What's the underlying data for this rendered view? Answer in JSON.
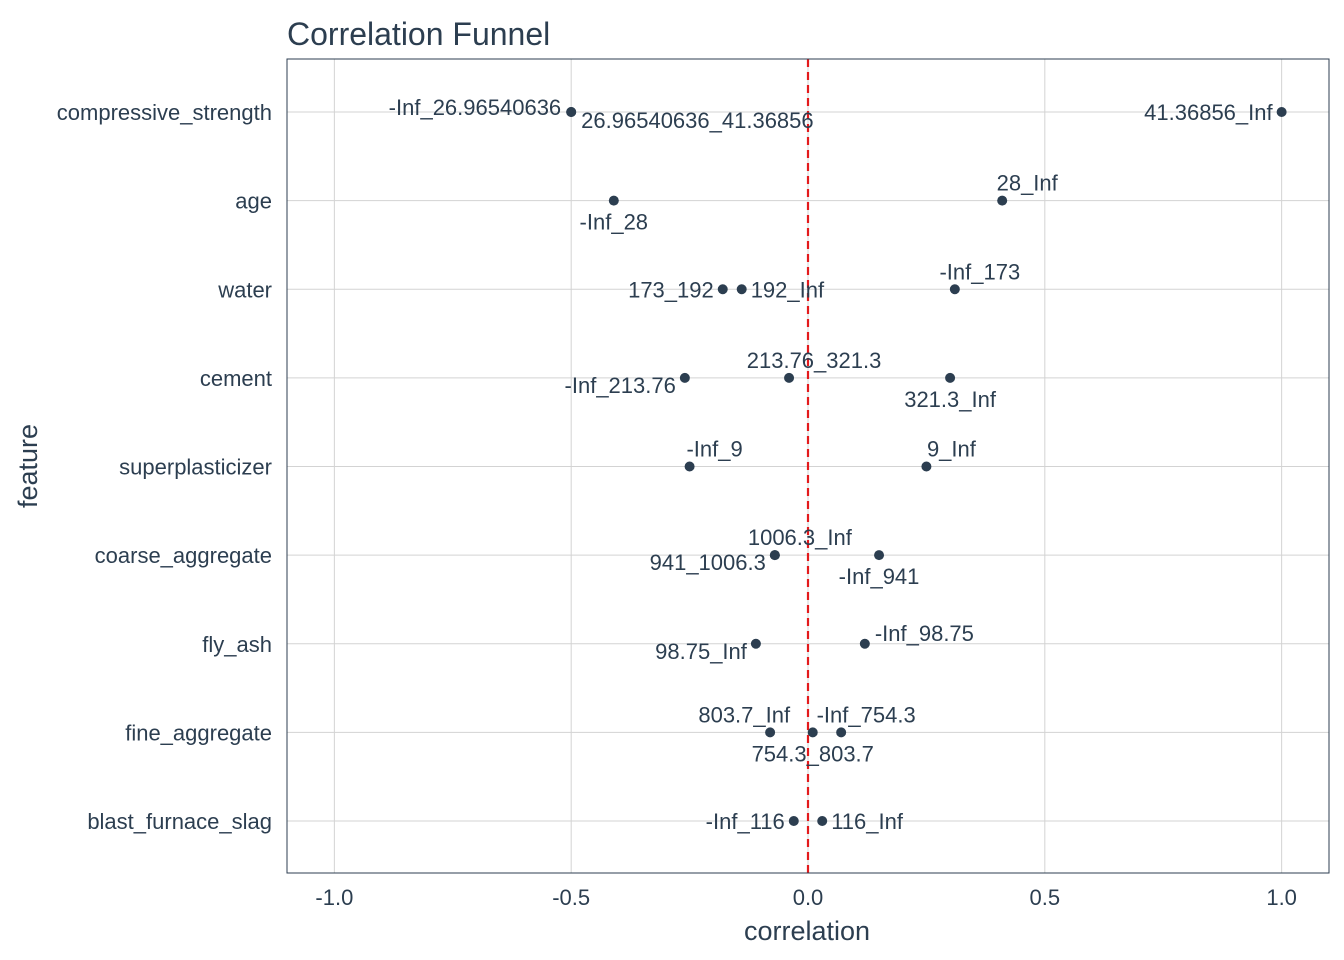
{
  "chart_data": {
    "type": "scatter",
    "title": "Correlation Funnel",
    "xlabel": "correlation",
    "ylabel": "feature",
    "xlim": [
      -1.1,
      1.1
    ],
    "x_ticks": [
      -1.0,
      -0.5,
      0.0,
      0.5,
      1.0
    ],
    "x_tick_labels": [
      "-1.0",
      "-0.5",
      "0.0",
      "0.5",
      "1.0"
    ],
    "grid": true,
    "legend": "none",
    "point_color": "#2c3e50",
    "reference_line": {
      "x": 0,
      "color": "#e31a1c",
      "style": "dashed"
    },
    "categories": [
      "compressive_strength",
      "age",
      "water",
      "cement",
      "superplasticizer",
      "coarse_aggregate",
      "fly_ash",
      "fine_aggregate",
      "blast_furnace_slag"
    ],
    "points": [
      {
        "feature": "compressive_strength",
        "bin": "-Inf_26.96540636",
        "correlation": -0.5,
        "label_pos": "upper-left"
      },
      {
        "feature": "compressive_strength",
        "bin": "26.96540636_41.36856",
        "correlation": -0.5,
        "label_pos": "lower-right"
      },
      {
        "feature": "compressive_strength",
        "bin": "41.36856_Inf",
        "correlation": 1.0,
        "label_pos": "left"
      },
      {
        "feature": "age",
        "bin": "-Inf_28",
        "correlation": -0.41,
        "label_pos": "below"
      },
      {
        "feature": "age",
        "bin": "28_Inf",
        "correlation": 0.41,
        "label_pos": "above"
      },
      {
        "feature": "water",
        "bin": "173_192",
        "correlation": -0.18,
        "label_pos": "left"
      },
      {
        "feature": "water",
        "bin": "192_Inf",
        "correlation": -0.14,
        "label_pos": "right"
      },
      {
        "feature": "water",
        "bin": "-Inf_173",
        "correlation": 0.31,
        "label_pos": "above"
      },
      {
        "feature": "cement",
        "bin": "-Inf_213.76",
        "correlation": -0.26,
        "label_pos": "below-left"
      },
      {
        "feature": "cement",
        "bin": "213.76_321.3",
        "correlation": -0.04,
        "label_pos": "above"
      },
      {
        "feature": "cement",
        "bin": "321.3_Inf",
        "correlation": 0.3,
        "label_pos": "below"
      },
      {
        "feature": "superplasticizer",
        "bin": "-Inf_9",
        "correlation": -0.25,
        "label_pos": "above"
      },
      {
        "feature": "superplasticizer",
        "bin": "9_Inf",
        "correlation": 0.25,
        "label_pos": "above"
      },
      {
        "feature": "coarse_aggregate",
        "bin": "941_1006.3",
        "correlation": -0.07,
        "label_pos": "below-left"
      },
      {
        "feature": "coarse_aggregate",
        "bin": "1006.3_Inf",
        "correlation": -0.07,
        "label_pos": "above"
      },
      {
        "feature": "coarse_aggregate",
        "bin": "-Inf_941",
        "correlation": 0.15,
        "label_pos": "below"
      },
      {
        "feature": "fly_ash",
        "bin": "98.75_Inf",
        "correlation": -0.11,
        "label_pos": "below-left"
      },
      {
        "feature": "fly_ash",
        "bin": "-Inf_98.75",
        "correlation": 0.12,
        "label_pos": "upper-right"
      },
      {
        "feature": "fine_aggregate",
        "bin": "803.7_Inf",
        "correlation": -0.08,
        "label_pos": "above-left"
      },
      {
        "feature": "fine_aggregate",
        "bin": "754.3_803.7",
        "correlation": 0.01,
        "label_pos": "below"
      },
      {
        "feature": "fine_aggregate",
        "bin": "-Inf_754.3",
        "correlation": 0.07,
        "label_pos": "above"
      },
      {
        "feature": "blast_furnace_slag",
        "bin": "-Inf_116",
        "correlation": -0.03,
        "label_pos": "left"
      },
      {
        "feature": "blast_furnace_slag",
        "bin": "116_Inf",
        "correlation": 0.03,
        "label_pos": "right"
      }
    ]
  }
}
